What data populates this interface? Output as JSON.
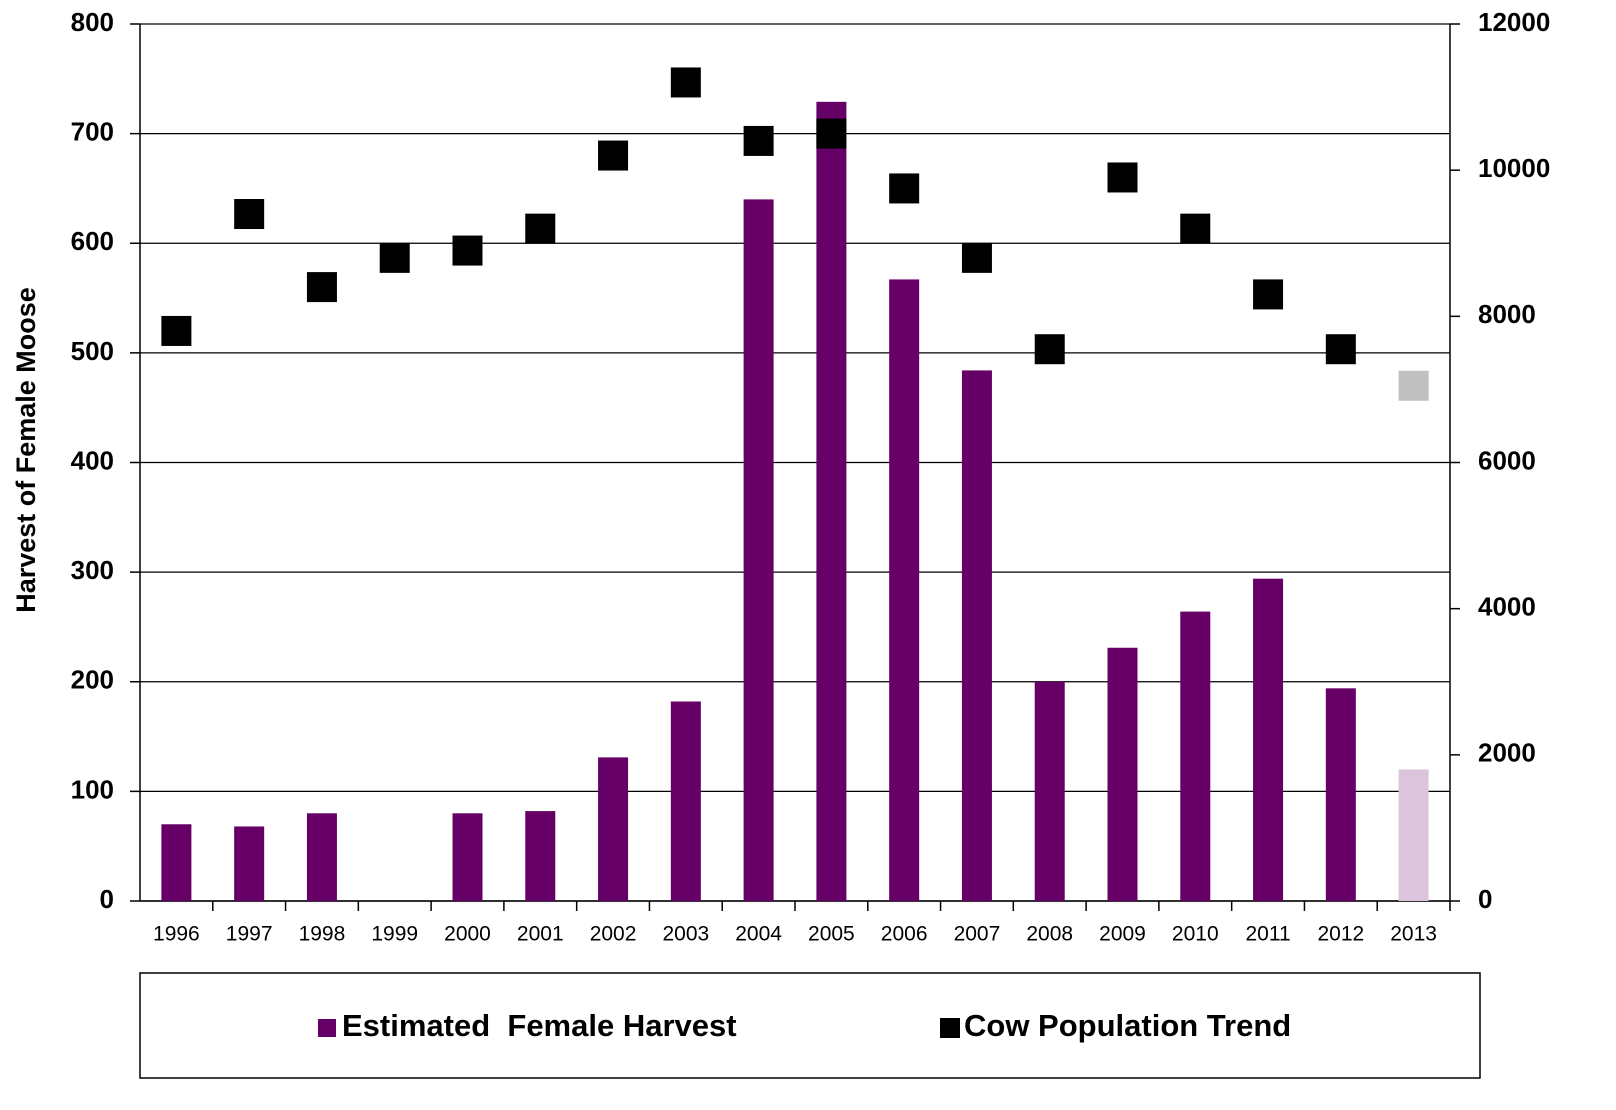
{
  "chart_data": {
    "type": "bar_scatter",
    "y_label": "Harvest of Female Moose",
    "categories": [
      "1996",
      "1997",
      "1998",
      "1999",
      "2000",
      "2001",
      "2002",
      "2003",
      "2004",
      "2005",
      "2006",
      "2007",
      "2008",
      "2009",
      "2010",
      "2011",
      "2012",
      "2013"
    ],
    "series": [
      {
        "name": "Estimated  Female Harvest",
        "type": "bar",
        "color": "#660066",
        "colors": [
          "#660066",
          "#660066",
          "#660066",
          "#660066",
          "#660066",
          "#660066",
          "#660066",
          "#660066",
          "#660066",
          "#660066",
          "#660066",
          "#660066",
          "#660066",
          "#660066",
          "#660066",
          "#660066",
          "#660066",
          "#dcc4dc"
        ],
        "values": [
          70,
          68,
          80,
          null,
          80,
          82,
          131,
          182,
          640,
          729,
          567,
          484,
          200,
          231,
          264,
          294,
          194,
          120
        ]
      },
      {
        "name": "Cow Population Trend",
        "type": "scatter",
        "axis": "y2",
        "color": "#000000",
        "colors": [
          "#000000",
          "#000000",
          "#000000",
          "#000000",
          "#000000",
          "#000000",
          "#000000",
          "#000000",
          "#000000",
          "#000000",
          "#000000",
          "#000000",
          "#000000",
          "#000000",
          "#000000",
          "#000000",
          "#000000",
          "#c0c0c0"
        ],
        "values": [
          7800,
          9400,
          8400,
          8800,
          8900,
          9200,
          10200,
          11200,
          10400,
          10500,
          9750,
          8800,
          7550,
          9900,
          9200,
          8300,
          7550,
          7050
        ]
      }
    ],
    "ylim": [
      0,
      800
    ],
    "yticks": [
      0,
      100,
      200,
      300,
      400,
      500,
      600,
      700,
      800
    ],
    "y2lim": [
      0,
      12000
    ],
    "y2ticks": [
      0,
      2000,
      4000,
      6000,
      8000,
      10000,
      12000
    ],
    "grid": true,
    "legend": "bottom"
  }
}
